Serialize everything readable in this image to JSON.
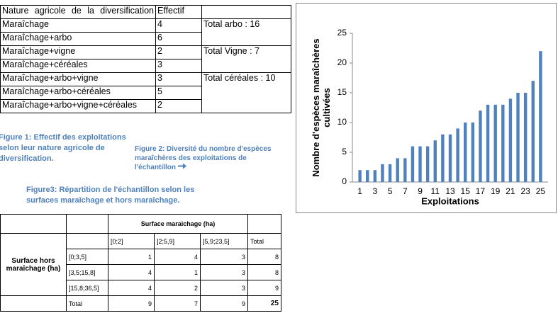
{
  "table1": {
    "header": [
      "Nature agricole de la diversification",
      "Effectif"
    ],
    "rows": [
      [
        "Maraîchage",
        "4"
      ],
      [
        "Maraîchage+arbo",
        "6"
      ],
      [
        "Maraîchage+vigne",
        "2"
      ],
      [
        "Maraîchage+céréales",
        "3"
      ],
      [
        "Maraîchage+arbo+vigne",
        "3"
      ],
      [
        "Maraîchage+arbo+céréales",
        "5"
      ],
      [
        "Maraîchage+arbo+vigne+céréales",
        "2"
      ]
    ],
    "totals": [
      "Total arbo : 16",
      "Total Vigne : 7",
      "Total céréales : 10"
    ]
  },
  "captions": {
    "figure1": "Figure 1: Effectif des exploitations selon leur nature agricole de diversification.",
    "figure2": "Figure 2: Diversité du nombre d'espèces maraîchères des exploitations de l'échantillon",
    "figure3": "Figure3: Répartition de l'échantillon selon les surfaces maraîchage et hors maraîchage."
  },
  "table2": {
    "column_header": "Surface maraichage (ha)",
    "columns": [
      "[0;2]",
      "]2;5,9]",
      "]5,9;23,5]",
      "Total"
    ],
    "row_header": "Surface hors maraîchage (ha)",
    "rows": [
      [
        "[0;3,5]",
        "1",
        "4",
        "3",
        "8"
      ],
      [
        "]3,5;15,8]",
        "4",
        "1",
        "3",
        "8"
      ],
      [
        "]15,8;36,5]",
        "4",
        "2",
        "3",
        "9"
      ],
      [
        "Total",
        "9",
        "7",
        "9",
        "25"
      ]
    ]
  },
  "chart_data": {
    "type": "bar",
    "x_label": "Exploitations",
    "y_label": "Nombre d'espèces maraîchères cultivées",
    "x": [
      1,
      2,
      3,
      4,
      5,
      6,
      7,
      8,
      9,
      10,
      11,
      12,
      13,
      14,
      15,
      16,
      17,
      18,
      19,
      20,
      21,
      22,
      23,
      24,
      25
    ],
    "values": [
      2,
      2,
      2,
      3,
      3,
      4,
      4,
      6,
      6,
      6,
      7,
      8,
      8,
      9,
      10,
      10,
      12,
      13,
      13,
      13,
      14,
      15,
      15,
      17,
      22
    ],
    "color": "#4f81bd",
    "xlim": [
      0,
      26
    ],
    "xticks": [
      1,
      3,
      5,
      7,
      9,
      11,
      13,
      15,
      17,
      19,
      21,
      23,
      25
    ],
    "ylim": [
      0,
      25
    ],
    "yticks": [
      0,
      5,
      10,
      15,
      20,
      25
    ]
  }
}
